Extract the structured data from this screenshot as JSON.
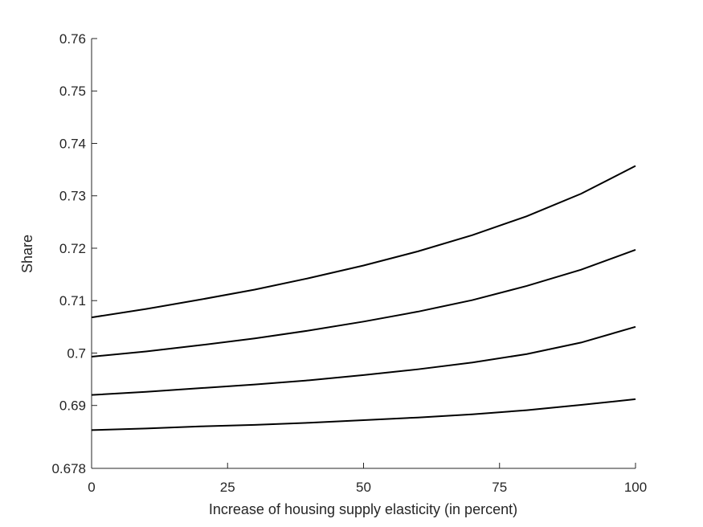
{
  "chart_data": {
    "type": "line",
    "title": "",
    "xlabel": "Increase of housing supply elasticity (in percent)",
    "ylabel": "Share",
    "xlim": [
      0,
      100
    ],
    "ylim": [
      0.678,
      0.76
    ],
    "xticks": [
      0,
      25,
      50,
      75,
      100
    ],
    "xtick_labels": [
      "0",
      "25",
      "50",
      "75",
      "100"
    ],
    "yticks": [
      0.678,
      0.69,
      0.7,
      0.71,
      0.72,
      0.73,
      0.74,
      0.75,
      0.76
    ],
    "ytick_labels": [
      "0.678",
      "0.69",
      "0.7",
      "0.71",
      "0.72",
      "0.73",
      "0.74",
      "0.75",
      "0.76"
    ],
    "grid": false,
    "legend": "none",
    "line_color": "#000000",
    "x": [
      0,
      10,
      20,
      30,
      40,
      50,
      60,
      70,
      80,
      90,
      100
    ],
    "series": [
      {
        "values": [
          0.7068,
          0.7084,
          0.7102,
          0.7121,
          0.7143,
          0.7167,
          0.7194,
          0.7225,
          0.7261,
          0.7304,
          0.7357
        ]
      },
      {
        "values": [
          0.6993,
          0.7003,
          0.7015,
          0.7028,
          0.7043,
          0.706,
          0.7079,
          0.7101,
          0.7128,
          0.7159,
          0.7197
        ]
      },
      {
        "values": [
          0.692,
          0.6926,
          0.6933,
          0.694,
          0.6948,
          0.6958,
          0.6969,
          0.6982,
          0.6998,
          0.702,
          0.705
        ]
      },
      {
        "values": [
          0.6853,
          0.6856,
          0.686,
          0.6863,
          0.6867,
          0.6872,
          0.6877,
          0.6883,
          0.6891,
          0.6901,
          0.6912
        ]
      }
    ]
  }
}
